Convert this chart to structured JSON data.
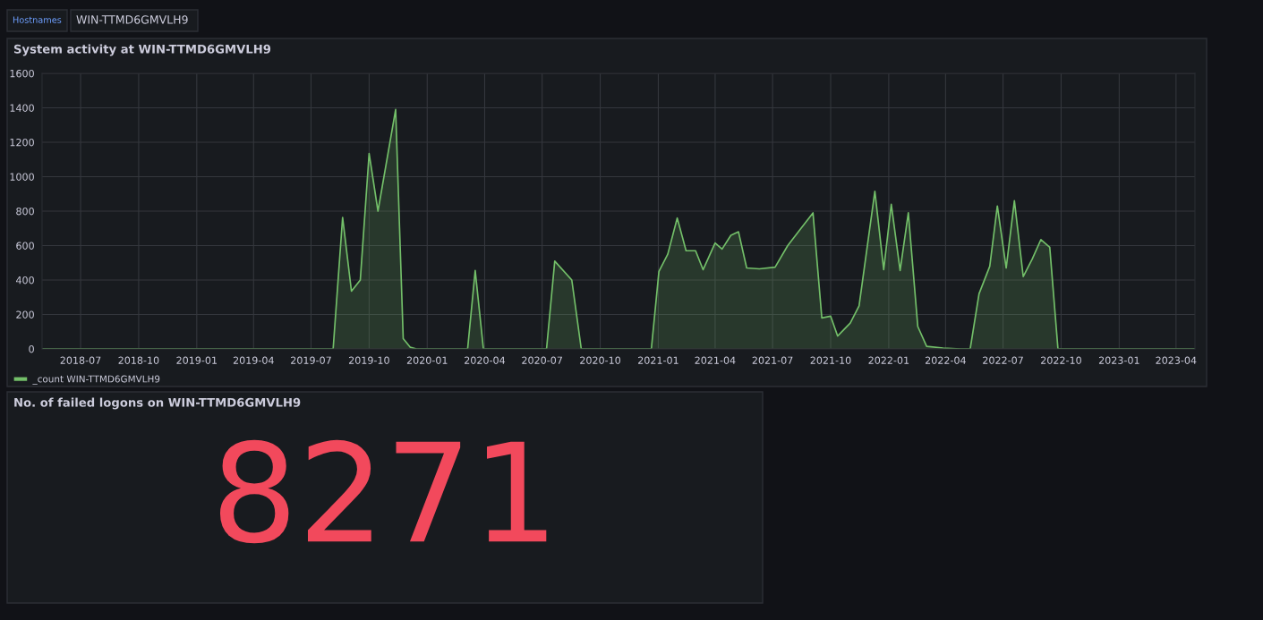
{
  "chart_data": [
    {
      "type": "other",
      "annotations": [
        "Hostnames",
        "WIN-TTMD6GMVLH9"
      ]
    },
    {
      "type": "area",
      "title": "System activity at WIN-TTMD6GMVLH9",
      "x": [
        "2018-05-01",
        "2019-08-05",
        "2019-08-20",
        "2019-09-03",
        "2019-09-17",
        "2019-10-01",
        "2019-10-15",
        "2019-11-12",
        "2019-11-24",
        "2019-12-05",
        "2019-12-15",
        "2020-03-05",
        "2020-03-17",
        "2020-03-30",
        "2020-07-08",
        "2020-07-21",
        "2020-08-17",
        "2020-09-01",
        "2020-12-21",
        "2021-01-02",
        "2021-01-16",
        "2021-01-31",
        "2021-02-14",
        "2021-03-01",
        "2021-03-13",
        "2021-04-01",
        "2021-04-12",
        "2021-04-26",
        "2021-05-08",
        "2021-05-21",
        "2021-06-10",
        "2021-07-05",
        "2021-07-25",
        "2021-08-15",
        "2021-09-03",
        "2021-09-17",
        "2021-10-01",
        "2021-10-12",
        "2021-11-01",
        "2021-11-15",
        "2021-12-10",
        "2021-12-24",
        "2022-01-05",
        "2022-01-19",
        "2022-02-01",
        "2022-02-16",
        "2022-03-02",
        "2022-03-28",
        "2022-04-25",
        "2022-05-10",
        "2022-05-24",
        "2022-06-10",
        "2022-06-22",
        "2022-07-06",
        "2022-07-19",
        "2022-08-02",
        "2022-08-16",
        "2022-08-30",
        "2022-09-13",
        "2022-09-26",
        "2023-05-01"
      ],
      "series": [
        {
          "name": "_count WIN-TTMD6GMVLH9",
          "color": "#73bf69",
          "values": [
            0,
            0,
            763,
            335,
            400,
            1135,
            800,
            1390,
            60,
            10,
            0,
            0,
            455,
            0,
            0,
            510,
            400,
            0,
            0,
            450,
            550,
            760,
            570,
            570,
            460,
            615,
            580,
            660,
            680,
            470,
            465,
            475,
            600,
            700,
            790,
            180,
            190,
            75,
            150,
            250,
            915,
            460,
            840,
            455,
            790,
            130,
            15,
            5,
            0,
            0,
            320,
            480,
            830,
            470,
            860,
            420,
            520,
            635,
            590,
            0,
            0
          ]
        }
      ],
      "xlim": [
        "2018-05-01",
        "2023-05-01"
      ],
      "xticks": [
        "2018-07",
        "2018-10",
        "2019-01",
        "2019-04",
        "2019-07",
        "2019-10",
        "2020-01",
        "2020-04",
        "2020-07",
        "2020-10",
        "2021-01",
        "2021-04",
        "2021-07",
        "2021-10",
        "2022-01",
        "2022-04",
        "2022-07",
        "2022-10",
        "2023-01",
        "2023-04"
      ],
      "ylim": [
        0,
        1600
      ],
      "yticks": [
        0,
        200,
        400,
        600,
        800,
        1000,
        1200,
        1400,
        1600
      ],
      "grid": true,
      "legend": "bottom left"
    },
    {
      "type": "other",
      "title": "No. of failed logons on WIN-TTMD6GMVLH9",
      "annotations": [
        "8271"
      ]
    }
  ]
}
